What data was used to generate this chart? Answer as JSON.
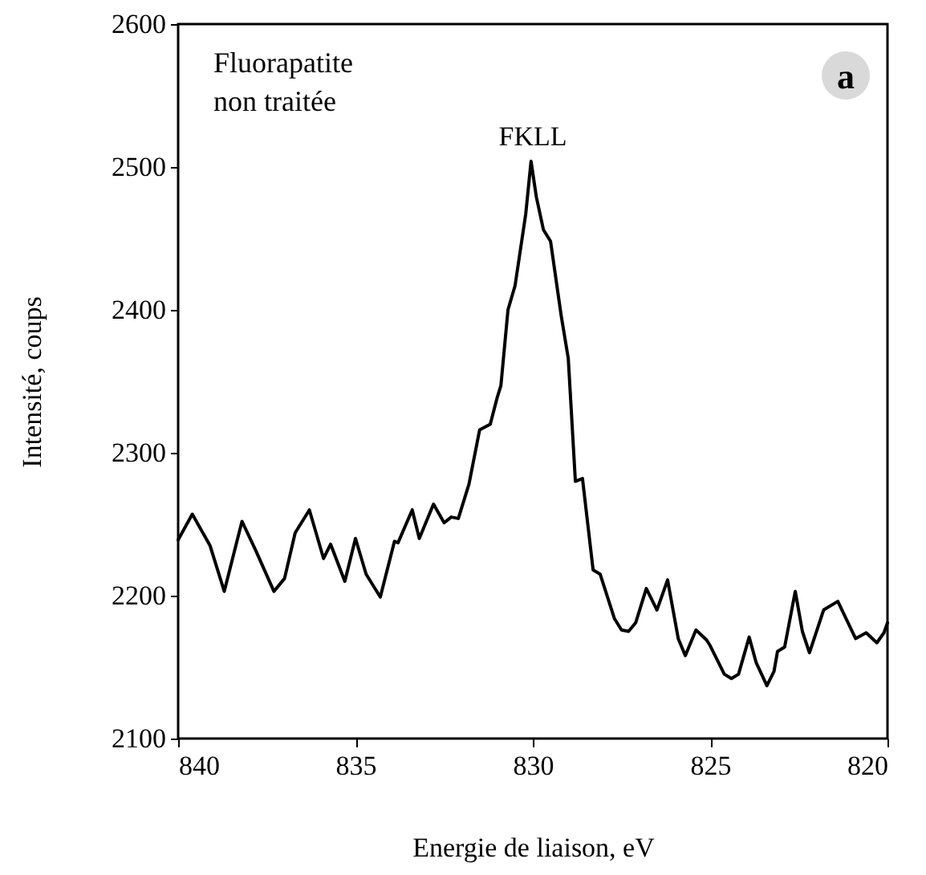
{
  "chart_data": {
    "type": "line",
    "xlabel": "Energie de liaison, eV",
    "ylabel": "Intensité, coups",
    "annotations": [
      "Fluorapatite\nnon traitée",
      "a",
      {
        "text": "FKLL",
        "x": 830,
        "y": 2504
      }
    ],
    "series": [
      {
        "color": "#000000",
        "x": [
          840,
          839.6,
          839.1,
          838.7,
          838.2,
          837.8,
          837.3,
          837.0,
          836.7,
          836.3,
          835.9,
          835.7,
          835.3,
          835.0,
          834.7,
          834.3,
          833.9,
          833.8,
          833.4,
          833.2,
          832.8,
          832.5,
          832.3,
          832.1,
          831.8,
          831.5,
          831.2,
          831.0,
          830.9,
          830.7,
          830.5,
          830.2,
          830.05,
          829.9,
          829.7,
          829.5,
          829.2,
          829.0,
          828.8,
          828.6,
          828.3,
          828.1,
          827.7,
          827.5,
          827.3,
          827.1,
          826.8,
          826.5,
          826.2,
          825.9,
          825.7,
          825.4,
          825.1,
          825.0,
          824.6,
          824.4,
          824.2,
          823.9,
          823.7,
          823.4,
          823.2,
          823.1,
          822.9,
          822.6,
          822.4,
          822.2,
          821.8,
          821.4,
          820.9,
          820.6,
          820.3,
          820.1,
          820.0
        ],
        "values": [
          2239,
          2257,
          2235,
          2203,
          2252,
          2231,
          2203,
          2212,
          2244,
          2260,
          2226,
          2236,
          2210,
          2240,
          2215,
          2199,
          2238,
          2237,
          2260,
          2240,
          2264,
          2251,
          2255,
          2254,
          2278,
          2316,
          2320,
          2339,
          2347,
          2400,
          2417,
          2467,
          2504,
          2479,
          2456,
          2448,
          2396,
          2366,
          2280,
          2282,
          2218,
          2215,
          2184,
          2176,
          2175,
          2181,
          2205,
          2190,
          2211,
          2170,
          2158,
          2176,
          2169,
          2165,
          2145,
          2142,
          2145,
          2171,
          2153,
          2137,
          2147,
          2161,
          2164,
          2203,
          2175,
          2160,
          2190,
          2196,
          2170,
          2174,
          2167,
          2174,
          2181
        ]
      }
    ],
    "xlim": [
      840,
      820
    ],
    "xticks": [
      840,
      835,
      830,
      825,
      820
    ],
    "ylim": [
      2100,
      2600
    ],
    "yticks": [
      2100,
      2200,
      2300,
      2400,
      2500,
      2600
    ],
    "grid": false,
    "marker": "none",
    "line_style": "solid"
  }
}
